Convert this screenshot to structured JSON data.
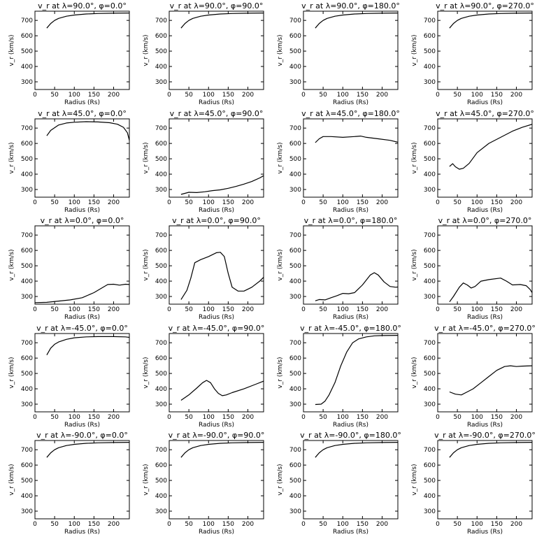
{
  "layout": {
    "cols": 4,
    "rows": 5
  },
  "chart_data": [
    {
      "type": "line",
      "title": "v_r at λ=90.0°, φ=0.0°",
      "xlabel": "Radius (Rs)",
      "ylabel": "v_r (km/s)",
      "xlim": [
        0,
        240
      ],
      "ylim": [
        250,
        760
      ],
      "xticks": [
        0,
        50,
        100,
        150,
        200
      ],
      "yticks": [
        300,
        400,
        500,
        600,
        700
      ],
      "x": [
        30,
        40,
        50,
        60,
        80,
        100,
        130,
        160,
        200,
        240
      ],
      "y": [
        650,
        680,
        700,
        713,
        727,
        735,
        742,
        745,
        747,
        748
      ]
    },
    {
      "type": "line",
      "title": "v_r at λ=90.0°, φ=90.0°",
      "xlabel": "Radius (Rs)",
      "ylabel": "v_r (km/s)",
      "xlim": [
        0,
        240
      ],
      "ylim": [
        250,
        760
      ],
      "xticks": [
        0,
        50,
        100,
        150,
        200
      ],
      "yticks": [
        300,
        400,
        500,
        600,
        700
      ],
      "x": [
        30,
        40,
        50,
        60,
        80,
        100,
        130,
        160,
        200,
        240
      ],
      "y": [
        650,
        680,
        700,
        713,
        727,
        735,
        742,
        745,
        747,
        748
      ]
    },
    {
      "type": "line",
      "title": "v_r at λ=90.0°, φ=180.0°",
      "xlabel": "Radius (Rs)",
      "ylabel": "v_r (km/s)",
      "xlim": [
        0,
        240
      ],
      "ylim": [
        250,
        760
      ],
      "xticks": [
        0,
        50,
        100,
        150,
        200
      ],
      "yticks": [
        300,
        400,
        500,
        600,
        700
      ],
      "x": [
        30,
        40,
        50,
        60,
        80,
        100,
        130,
        160,
        200,
        240
      ],
      "y": [
        650,
        680,
        700,
        713,
        727,
        735,
        742,
        745,
        747,
        748
      ]
    },
    {
      "type": "line",
      "title": "v_r at λ=90.0°, φ=270.0°",
      "xlabel": "Radius (Rs)",
      "ylabel": "v_r (km/s)",
      "xlim": [
        0,
        240
      ],
      "ylim": [
        250,
        760
      ],
      "xticks": [
        0,
        50,
        100,
        150,
        200
      ],
      "yticks": [
        300,
        400,
        500,
        600,
        700
      ],
      "x": [
        30,
        40,
        50,
        60,
        80,
        100,
        130,
        160,
        200,
        240
      ],
      "y": [
        650,
        680,
        700,
        713,
        727,
        735,
        742,
        745,
        747,
        748
      ]
    },
    {
      "type": "line",
      "title": "v_r at λ=45.0°, φ=0.0°",
      "xlabel": "Radius (Rs)",
      "ylabel": "v_r (km/s)",
      "xlim": [
        0,
        240
      ],
      "ylim": [
        250,
        760
      ],
      "xticks": [
        0,
        50,
        100,
        150,
        200
      ],
      "yticks": [
        300,
        400,
        500,
        600,
        700
      ],
      "x": [
        30,
        40,
        60,
        80,
        100,
        130,
        160,
        190,
        210,
        225,
        235,
        240
      ],
      "y": [
        650,
        685,
        720,
        733,
        738,
        742,
        740,
        735,
        725,
        705,
        670,
        620
      ]
    },
    {
      "type": "line",
      "title": "v_r at λ=45.0°, φ=90.0°",
      "xlabel": "Radius (Rs)",
      "ylabel": "v_r (km/s)",
      "xlim": [
        0,
        240
      ],
      "ylim": [
        250,
        760
      ],
      "xticks": [
        0,
        50,
        100,
        150,
        200
      ],
      "yticks": [
        300,
        400,
        500,
        600,
        700
      ],
      "x": [
        30,
        50,
        70,
        90,
        110,
        130,
        150,
        170,
        190,
        210,
        230,
        240
      ],
      "y": [
        268,
        282,
        280,
        285,
        293,
        298,
        308,
        320,
        335,
        352,
        375,
        390
      ]
    },
    {
      "type": "line",
      "title": "v_r at λ=45.0°, φ=180.0°",
      "xlabel": "Radius (Rs)",
      "ylabel": "v_r (km/s)",
      "xlim": [
        0,
        240
      ],
      "ylim": [
        250,
        760
      ],
      "xticks": [
        0,
        50,
        100,
        150,
        200
      ],
      "yticks": [
        300,
        400,
        500,
        600,
        700
      ],
      "x": [
        30,
        40,
        50,
        70,
        100,
        130,
        145,
        160,
        190,
        220,
        240
      ],
      "y": [
        605,
        630,
        645,
        645,
        640,
        645,
        648,
        640,
        630,
        620,
        608
      ]
    },
    {
      "type": "line",
      "title": "v_r at λ=45.0°, φ=270.0°",
      "xlabel": "Radius (Rs)",
      "ylabel": "v_r (km/s)",
      "xlim": [
        0,
        240
      ],
      "ylim": [
        250,
        760
      ],
      "xticks": [
        0,
        50,
        100,
        150,
        200
      ],
      "yticks": [
        300,
        400,
        500,
        600,
        700
      ],
      "x": [
        30,
        38,
        45,
        55,
        65,
        80,
        100,
        130,
        160,
        190,
        215,
        240
      ],
      "y": [
        450,
        468,
        448,
        432,
        438,
        470,
        540,
        600,
        640,
        680,
        705,
        725
      ]
    },
    {
      "type": "line",
      "title": "v_r at λ=0.0°, φ=0.0°",
      "xlabel": "Radius (Rs)",
      "ylabel": "v_r (km/s)",
      "xlim": [
        0,
        240
      ],
      "ylim": [
        250,
        760
      ],
      "xticks": [
        0,
        50,
        100,
        150,
        200
      ],
      "yticks": [
        300,
        400,
        500,
        600,
        700
      ],
      "x": [
        0,
        30,
        60,
        90,
        120,
        150,
        170,
        185,
        200,
        215,
        230,
        240
      ],
      "y": [
        260,
        262,
        270,
        278,
        292,
        325,
        355,
        378,
        380,
        374,
        380,
        378
      ]
    },
    {
      "type": "line",
      "title": "v_r at λ=0.0°, φ=90.0°",
      "xlabel": "Radius (Rs)",
      "ylabel": "v_r (km/s)",
      "xlim": [
        0,
        240
      ],
      "ylim": [
        250,
        760
      ],
      "xticks": [
        0,
        50,
        100,
        150,
        200
      ],
      "yticks": [
        300,
        400,
        500,
        600,
        700
      ],
      "x": [
        30,
        45,
        55,
        65,
        80,
        100,
        120,
        130,
        140,
        150,
        160,
        175,
        190,
        210,
        230,
        240
      ],
      "y": [
        280,
        340,
        420,
        520,
        540,
        560,
        585,
        588,
        560,
        450,
        360,
        335,
        335,
        360,
        400,
        425
      ]
    },
    {
      "type": "line",
      "title": "v_r at λ=0.0°, φ=180.0°",
      "xlabel": "Radius (Rs)",
      "ylabel": "v_r (km/s)",
      "xlim": [
        0,
        240
      ],
      "ylim": [
        250,
        760
      ],
      "xticks": [
        0,
        50,
        100,
        150,
        200
      ],
      "yticks": [
        300,
        400,
        500,
        600,
        700
      ],
      "x": [
        30,
        40,
        55,
        70,
        85,
        100,
        115,
        130,
        150,
        170,
        180,
        190,
        205,
        220,
        235,
        240
      ],
      "y": [
        272,
        280,
        278,
        292,
        305,
        320,
        318,
        325,
        375,
        440,
        455,
        440,
        395,
        365,
        360,
        362
      ]
    },
    {
      "type": "line",
      "title": "v_r at λ=0.0°, φ=270.0°",
      "xlabel": "Radius (Rs)",
      "ylabel": "v_r (km/s)",
      "xlim": [
        0,
        240
      ],
      "ylim": [
        250,
        760
      ],
      "xticks": [
        0,
        50,
        100,
        150,
        200
      ],
      "yticks": [
        300,
        400,
        500,
        600,
        700
      ],
      "x": [
        30,
        40,
        55,
        65,
        75,
        85,
        95,
        110,
        130,
        160,
        175,
        190,
        210,
        225,
        235,
        240
      ],
      "y": [
        265,
        300,
        360,
        388,
        375,
        355,
        365,
        400,
        410,
        420,
        400,
        375,
        378,
        370,
        345,
        325
      ]
    },
    {
      "type": "line",
      "title": "v_r at λ=-45.0°, φ=0.0°",
      "xlabel": "Radius (Rs)",
      "ylabel": "v_r (km/s)",
      "xlim": [
        0,
        240
      ],
      "ylim": [
        250,
        760
      ],
      "xticks": [
        0,
        50,
        100,
        150,
        200
      ],
      "yticks": [
        300,
        400,
        500,
        600,
        700
      ],
      "x": [
        30,
        40,
        50,
        60,
        80,
        100,
        130,
        160,
        200,
        230,
        240
      ],
      "y": [
        620,
        665,
        690,
        705,
        722,
        732,
        738,
        740,
        740,
        738,
        735
      ]
    },
    {
      "type": "line",
      "title": "v_r at λ=-45.0°, φ=90.0°",
      "xlabel": "Radius (Rs)",
      "ylabel": "v_r (km/s)",
      "xlim": [
        0,
        240
      ],
      "ylim": [
        250,
        760
      ],
      "xticks": [
        0,
        50,
        100,
        150,
        200
      ],
      "yticks": [
        300,
        400,
        500,
        600,
        700
      ],
      "x": [
        30,
        50,
        70,
        85,
        95,
        105,
        115,
        125,
        135,
        145,
        160,
        190,
        220,
        240
      ],
      "y": [
        325,
        360,
        405,
        440,
        455,
        440,
        400,
        370,
        355,
        360,
        375,
        400,
        430,
        450
      ]
    },
    {
      "type": "line",
      "title": "v_r at λ=-45.0°, φ=180.0°",
      "xlabel": "Radius (Rs)",
      "ylabel": "v_r (km/s)",
      "xlim": [
        0,
        240
      ],
      "ylim": [
        250,
        760
      ],
      "xticks": [
        0,
        50,
        100,
        150,
        200
      ],
      "yticks": [
        300,
        400,
        500,
        600,
        700
      ],
      "x": [
        30,
        45,
        55,
        65,
        80,
        95,
        110,
        125,
        140,
        160,
        180,
        200,
        240
      ],
      "y": [
        298,
        300,
        320,
        360,
        440,
        550,
        640,
        700,
        725,
        738,
        745,
        747,
        748
      ]
    },
    {
      "type": "line",
      "title": "v_r at λ=-45.0°, φ=270.0°",
      "xlabel": "Radius (Rs)",
      "ylabel": "v_r (km/s)",
      "xlim": [
        0,
        240
      ],
      "ylim": [
        250,
        760
      ],
      "xticks": [
        0,
        50,
        100,
        150,
        200
      ],
      "yticks": [
        300,
        400,
        500,
        600,
        700
      ],
      "x": [
        30,
        45,
        60,
        75,
        90,
        110,
        130,
        150,
        170,
        185,
        200,
        215,
        240
      ],
      "y": [
        380,
        365,
        360,
        380,
        400,
        440,
        480,
        520,
        545,
        550,
        545,
        548,
        550
      ]
    },
    {
      "type": "line",
      "title": "v_r at λ=-90.0°, φ=0.0°",
      "xlabel": "Radius (Rs)",
      "ylabel": "v_r (km/s)",
      "xlim": [
        0,
        240
      ],
      "ylim": [
        250,
        760
      ],
      "xticks": [
        0,
        50,
        100,
        150,
        200
      ],
      "yticks": [
        300,
        400,
        500,
        600,
        700
      ],
      "x": [
        30,
        40,
        50,
        60,
        80,
        100,
        130,
        160,
        200,
        240
      ],
      "y": [
        650,
        680,
        700,
        713,
        727,
        735,
        742,
        745,
        747,
        748
      ]
    },
    {
      "type": "line",
      "title": "v_r at λ=-90.0°, φ=90.0°",
      "xlabel": "Radius (Rs)",
      "ylabel": "v_r (km/s)",
      "xlim": [
        0,
        240
      ],
      "ylim": [
        250,
        760
      ],
      "xticks": [
        0,
        50,
        100,
        150,
        200
      ],
      "yticks": [
        300,
        400,
        500,
        600,
        700
      ],
      "x": [
        30,
        40,
        50,
        60,
        80,
        100,
        130,
        160,
        200,
        240
      ],
      "y": [
        650,
        680,
        700,
        713,
        727,
        735,
        742,
        745,
        747,
        748
      ]
    },
    {
      "type": "line",
      "title": "v_r at λ=-90.0°, φ=180.0°",
      "xlabel": "Radius (Rs)",
      "ylabel": "v_r (km/s)",
      "xlim": [
        0,
        240
      ],
      "ylim": [
        250,
        760
      ],
      "xticks": [
        0,
        50,
        100,
        150,
        200
      ],
      "yticks": [
        300,
        400,
        500,
        600,
        700
      ],
      "x": [
        30,
        40,
        50,
        60,
        80,
        100,
        130,
        160,
        200,
        240
      ],
      "y": [
        650,
        680,
        700,
        713,
        727,
        735,
        742,
        745,
        747,
        748
      ]
    },
    {
      "type": "line",
      "title": "v_r at λ=-90.0°, φ=270.0°",
      "xlabel": "Radius (Rs)",
      "ylabel": "v_r (km/s)",
      "xlim": [
        0,
        240
      ],
      "ylim": [
        250,
        760
      ],
      "xticks": [
        0,
        50,
        100,
        150,
        200
      ],
      "yticks": [
        300,
        400,
        500,
        600,
        700
      ],
      "x": [
        30,
        40,
        50,
        60,
        80,
        100,
        130,
        160,
        200,
        240
      ],
      "y": [
        650,
        680,
        700,
        713,
        727,
        735,
        742,
        745,
        747,
        748
      ]
    }
  ]
}
